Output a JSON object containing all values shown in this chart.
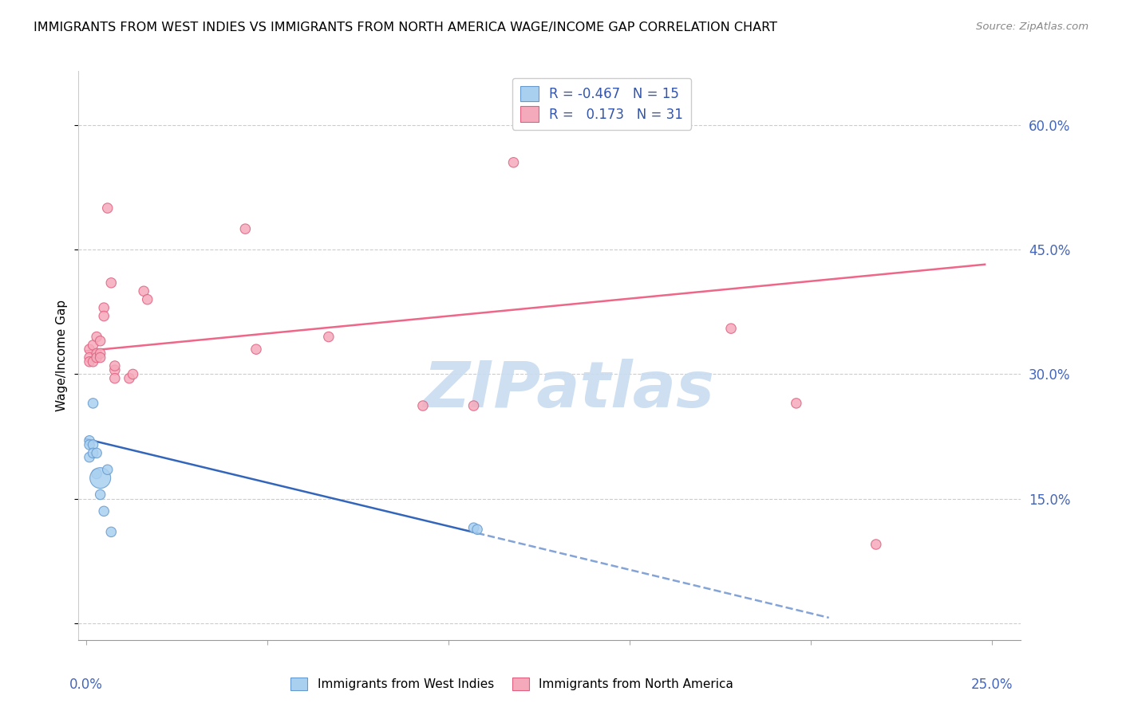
{
  "title": "IMMIGRANTS FROM WEST INDIES VS IMMIGRANTS FROM NORTH AMERICA WAGE/INCOME GAP CORRELATION CHART",
  "source": "Source: ZipAtlas.com",
  "ylabel": "Wage/Income Gap",
  "blue_label": "Immigrants from West Indies",
  "pink_label": "Immigrants from North America",
  "blue_R": -0.467,
  "blue_N": 15,
  "pink_R": 0.173,
  "pink_N": 31,
  "blue_color": "#AAD0F0",
  "pink_color": "#F5AABB",
  "blue_edge_color": "#6699CC",
  "pink_edge_color": "#E06080",
  "blue_line_color": "#3366BB",
  "pink_line_color": "#EE6688",
  "watermark_text": "ZIPatlas",
  "watermark_color": "#C8DCF0",
  "xmin": -0.002,
  "xmax": 0.258,
  "ymin": -0.02,
  "ymax": 0.665,
  "yticks": [
    0.0,
    0.15,
    0.3,
    0.45,
    0.6
  ],
  "ytick_labels_right": [
    "",
    "15.0%",
    "30.0%",
    "45.0%",
    "60.0%"
  ],
  "xtick_label_left": "0.0%",
  "xtick_label_right": "25.0%",
  "blue_points_x": [
    0.001,
    0.001,
    0.001,
    0.002,
    0.002,
    0.002,
    0.003,
    0.003,
    0.004,
    0.004,
    0.005,
    0.006,
    0.007,
    0.107,
    0.108
  ],
  "blue_points_y": [
    0.22,
    0.215,
    0.2,
    0.265,
    0.215,
    0.205,
    0.205,
    0.18,
    0.175,
    0.155,
    0.135,
    0.185,
    0.11,
    0.115,
    0.113
  ],
  "blue_sizes": [
    80,
    80,
    80,
    80,
    80,
    80,
    80,
    80,
    350,
    80,
    80,
    80,
    80,
    80,
    80
  ],
  "pink_points_x": [
    0.001,
    0.001,
    0.001,
    0.002,
    0.002,
    0.003,
    0.003,
    0.003,
    0.004,
    0.004,
    0.004,
    0.005,
    0.005,
    0.006,
    0.007,
    0.008,
    0.008,
    0.008,
    0.012,
    0.013,
    0.016,
    0.017,
    0.044,
    0.047,
    0.067,
    0.093,
    0.107,
    0.118,
    0.178,
    0.196,
    0.218
  ],
  "pink_points_y": [
    0.33,
    0.32,
    0.315,
    0.335,
    0.315,
    0.345,
    0.325,
    0.32,
    0.34,
    0.325,
    0.32,
    0.38,
    0.37,
    0.5,
    0.41,
    0.305,
    0.295,
    0.31,
    0.295,
    0.3,
    0.4,
    0.39,
    0.475,
    0.33,
    0.345,
    0.262,
    0.262,
    0.555,
    0.355,
    0.265,
    0.095
  ],
  "pink_sizes": [
    80,
    80,
    80,
    80,
    80,
    80,
    80,
    80,
    80,
    80,
    80,
    80,
    80,
    80,
    80,
    80,
    80,
    80,
    80,
    80,
    80,
    80,
    80,
    80,
    80,
    80,
    80,
    80,
    80,
    80,
    80
  ],
  "blue_line_x0": 0.0,
  "blue_line_x_solid_end": 0.108,
  "blue_line_x_dashed_end": 0.205,
  "blue_line_y0": 0.222,
  "blue_line_slope": -1.05,
  "pink_line_x0": 0.0,
  "pink_line_x1": 0.248,
  "pink_line_y0": 0.328,
  "pink_line_slope": 0.42
}
